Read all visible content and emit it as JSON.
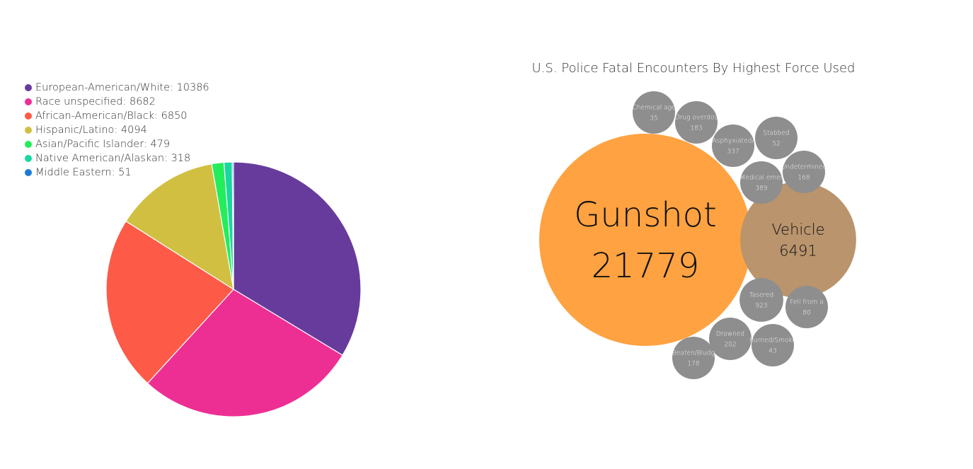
{
  "chart_data": [
    {
      "type": "pie",
      "legend_position": "top-left",
      "slices": [
        {
          "label": "European-American/White",
          "value": 10386,
          "color": "#673b9b"
        },
        {
          "label": "Race unspecified",
          "value": 8682,
          "color": "#ed2f94"
        },
        {
          "label": "African-American/Black",
          "value": 6850,
          "color": "#fd5b48"
        },
        {
          "label": "Hispanic/Latino",
          "value": 4094,
          "color": "#d1bf42"
        },
        {
          "label": "Asian/Pacific Islander",
          "value": 479,
          "color": "#23ed5b"
        },
        {
          "label": "Native American/Alaskan",
          "value": 318,
          "color": "#18d8a0"
        },
        {
          "label": "Middle Eastern",
          "value": 51,
          "color": "#1c7cd5"
        }
      ]
    },
    {
      "type": "bubble",
      "title": "U.S. Police Fatal Encounters By Highest Force Used",
      "bubbles": [
        {
          "label": "Gunshot",
          "value": 21779,
          "color": "#ffa241"
        },
        {
          "label": "Vehicle",
          "value": 6491,
          "color": "#b9946d"
        },
        {
          "label": "Tasered",
          "value": 923,
          "color": "#8e8e8e"
        },
        {
          "label": "Medical emer",
          "value": 389,
          "color": "#8e8e8e"
        },
        {
          "label": "Asphyxiated/",
          "value": 337,
          "color": "#8e8e8e"
        },
        {
          "label": "Drowned",
          "value": 202,
          "color": "#8e8e8e"
        },
        {
          "label": "Drug overdos",
          "value": 183,
          "color": "#8e8e8e"
        },
        {
          "label": "Beaten/Bludg",
          "value": 178,
          "color": "#8e8e8e"
        },
        {
          "label": "Undetermined",
          "value": 168,
          "color": "#8e8e8e"
        },
        {
          "label": "Fell from a",
          "value": 80,
          "color": "#8e8e8e"
        },
        {
          "label": "Stabbed",
          "value": 52,
          "color": "#8e8e8e"
        },
        {
          "label": "Burned/Smoke",
          "value": 43,
          "color": "#8e8e8e"
        },
        {
          "label": "Chemical age",
          "value": 35,
          "color": "#8e8e8e"
        }
      ]
    }
  ]
}
